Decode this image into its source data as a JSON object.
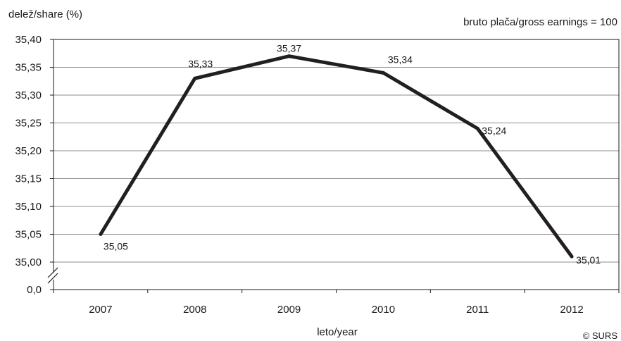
{
  "chart_data": {
    "type": "line",
    "title": "",
    "ylabel": "delež/share (%)",
    "xlabel": "leto/year",
    "note": "bruto plača/gross earnings = 100",
    "source": "© SURS",
    "categories": [
      "2007",
      "2008",
      "2009",
      "2010",
      "2011",
      "2012"
    ],
    "values": [
      35.05,
      35.33,
      35.37,
      35.34,
      35.24,
      35.01
    ],
    "value_labels": [
      "35,05",
      "35,33",
      "35,37",
      "35,34",
      "35,24",
      "35,01"
    ],
    "ylim": [
      35.0,
      35.4
    ],
    "y_ticks": [
      {
        "value": 35.4,
        "label": "35,40"
      },
      {
        "value": 35.35,
        "label": "35,35"
      },
      {
        "value": 35.3,
        "label": "35,30"
      },
      {
        "value": 35.25,
        "label": "35,25"
      },
      {
        "value": 35.2,
        "label": "35,20"
      },
      {
        "value": 35.15,
        "label": "35,15"
      },
      {
        "value": 35.1,
        "label": "35,10"
      },
      {
        "value": 35.05,
        "label": "35,05"
      },
      {
        "value": 35.0,
        "label": "35,00"
      }
    ],
    "y_axis_break": true,
    "y_axis_base_label": "0,0",
    "grid": true,
    "line_color": "#231f20"
  }
}
